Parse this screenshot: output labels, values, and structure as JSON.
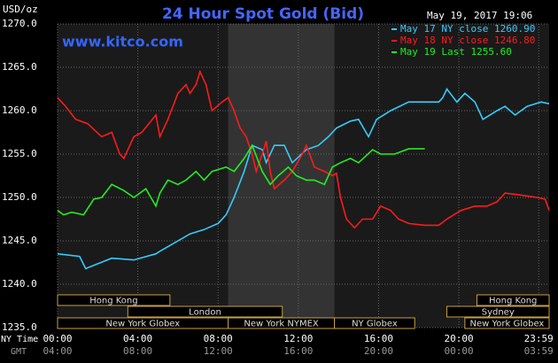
{
  "chart_data": {
    "type": "line",
    "title": "24 Hour Spot Gold (Bid)",
    "unit_label": "USD/oz",
    "timestamp": "May 19, 2017 19:06",
    "website": "www.kitco.com",
    "x_label": "NY Time",
    "x2_label": "GMT",
    "xlim": [
      0,
      24.5
    ],
    "xticks": [
      {
        "value": 0,
        "label": "00:00"
      },
      {
        "value": 4,
        "label": "04:00"
      },
      {
        "value": 8,
        "label": "08:00"
      },
      {
        "value": 12,
        "label": "12:00"
      },
      {
        "value": 16,
        "label": "16:00"
      },
      {
        "value": 20,
        "label": "20:00"
      },
      {
        "value": 23.98,
        "label": "23:59"
      }
    ],
    "x2ticks": [
      "04:00",
      "08:00",
      "12:00",
      "16:00",
      "20:00",
      "00:00",
      "03:59"
    ],
    "ylim": [
      1235,
      1270
    ],
    "yticks": [
      {
        "value": 1235,
        "label": "1235.0"
      },
      {
        "value": 1240,
        "label": "1240.0"
      },
      {
        "value": 1245,
        "label": "1245.0"
      },
      {
        "value": 1250,
        "label": "1250.0"
      },
      {
        "value": 1255,
        "label": "1255.0"
      },
      {
        "value": 1260,
        "label": "1260.0"
      },
      {
        "value": 1265,
        "label": "1265.0"
      },
      {
        "value": 1270,
        "label": "1270.0"
      }
    ],
    "grid": true,
    "legend": "top-right",
    "sessions": [
      {
        "label": "Hong Kong",
        "start": 0,
        "end": 5.6,
        "row": 0
      },
      {
        "label": "Hong Kong",
        "start": 20.9,
        "end": 24.5,
        "row": 0
      },
      {
        "label": "London",
        "start": 3.5,
        "end": 11.2,
        "row": 1
      },
      {
        "label": "Sydney",
        "start": 19.4,
        "end": 24.5,
        "row": 1
      },
      {
        "label": "New York Globex",
        "start": 0,
        "end": 8.5,
        "row": 2
      },
      {
        "label": "New York NYMEX",
        "start": 8.5,
        "end": 13.8,
        "row": 2,
        "shade": true
      },
      {
        "label": "NY Globex",
        "start": 13.8,
        "end": 17.8,
        "row": 2
      },
      {
        "label": "New York Globex",
        "start": 20.3,
        "end": 24.5,
        "row": 2
      }
    ],
    "series": [
      {
        "name": "May 17 NY close 1260.90",
        "color": "#33ccff",
        "x": [
          0,
          1.1,
          1.4,
          2.7,
          3.8,
          4.9,
          5.1,
          6.6,
          7.3,
          8.0,
          8.4,
          8.8,
          9.3,
          9.7,
          10.2,
          10.4,
          10.8,
          11.3,
          11.7,
          12.4,
          13.0,
          13.5,
          13.9,
          14.6,
          15.0,
          15.5,
          15.9,
          16.6,
          17.5,
          18.3,
          19.0,
          19.2,
          19.4,
          19.9,
          20.3,
          20.8,
          21.2,
          21.9,
          22.3,
          22.8,
          23.4,
          24.1,
          24.5
        ],
        "values": [
          1243.5,
          1243.2,
          1241.8,
          1243,
          1242.8,
          1243.5,
          1243.8,
          1245.8,
          1246.3,
          1247,
          1248,
          1250,
          1253,
          1256,
          1255.5,
          1254,
          1256,
          1256,
          1254,
          1255.5,
          1256,
          1257,
          1258,
          1258.8,
          1259,
          1257,
          1259,
          1260,
          1261,
          1261,
          1261,
          1261.5,
          1262.5,
          1261,
          1262,
          1261,
          1259,
          1260,
          1260.5,
          1259.5,
          1260.5,
          1261,
          1260.8
        ]
      },
      {
        "name": "May 18 NY close 1246.80",
        "color": "#ff1a1a",
        "x": [
          0,
          0.4,
          0.9,
          1.5,
          2.2,
          2.7,
          3.1,
          3.3,
          3.8,
          4.2,
          4.9,
          5.1,
          5.5,
          6.0,
          6.4,
          6.6,
          6.9,
          7.1,
          7.4,
          7.7,
          8.2,
          8.5,
          8.8,
          9.1,
          9.4,
          9.7,
          9.9,
          10.2,
          10.4,
          10.6,
          10.8,
          11.3,
          11.7,
          12.2,
          12.4,
          12.8,
          13.3,
          13.7,
          13.9,
          14.1,
          14.4,
          14.8,
          15.2,
          15.7,
          16.1,
          16.6,
          17.0,
          17.5,
          18.3,
          19.0,
          19.4,
          20.1,
          20.8,
          21.4,
          21.9,
          22.3,
          23.0,
          23.9,
          24.3,
          24.5
        ],
        "values": [
          1261.5,
          1260.5,
          1259,
          1258.5,
          1257,
          1257.5,
          1255,
          1254.5,
          1257,
          1257.5,
          1259.5,
          1257,
          1259,
          1262,
          1263,
          1262,
          1263,
          1264.5,
          1263,
          1260,
          1261,
          1261.5,
          1260,
          1258,
          1257,
          1255,
          1253,
          1255,
          1256.5,
          1253,
          1251,
          1252,
          1253,
          1255,
          1256,
          1253.5,
          1253,
          1252.5,
          1252.8,
          1250,
          1247.5,
          1246.5,
          1247.5,
          1247.5,
          1249,
          1248.5,
          1247.5,
          1247,
          1246.8,
          1246.8,
          1247.5,
          1248.5,
          1249,
          1249,
          1249.5,
          1250.5,
          1250.3,
          1250,
          1249.8,
          1248.5
        ]
      },
      {
        "name": "May 19 Last 1255.60",
        "color": "#22ee22",
        "x": [
          0,
          0.3,
          0.7,
          1.3,
          1.8,
          2.2,
          2.7,
          3.3,
          3.8,
          4.4,
          4.9,
          5.1,
          5.5,
          6.0,
          6.4,
          6.9,
          7.3,
          7.7,
          8.4,
          8.8,
          9.3,
          9.7,
          10.2,
          10.6,
          11.0,
          11.5,
          11.9,
          12.4,
          12.8,
          13.3,
          13.7,
          14.1,
          14.6,
          15.0,
          15.7,
          16.1,
          16.8,
          17.5,
          18.3
        ],
        "values": [
          1248.5,
          1248,
          1248.3,
          1248,
          1249.8,
          1250,
          1251.5,
          1250.8,
          1250,
          1251,
          1249,
          1250.5,
          1252,
          1251.5,
          1252,
          1253,
          1252,
          1253,
          1253.5,
          1253,
          1254.5,
          1256,
          1253,
          1251.5,
          1252.5,
          1253.5,
          1252.5,
          1252,
          1252,
          1251.5,
          1253.5,
          1254,
          1254.5,
          1254,
          1255.5,
          1255,
          1255,
          1255.6,
          1255.6
        ]
      }
    ]
  }
}
